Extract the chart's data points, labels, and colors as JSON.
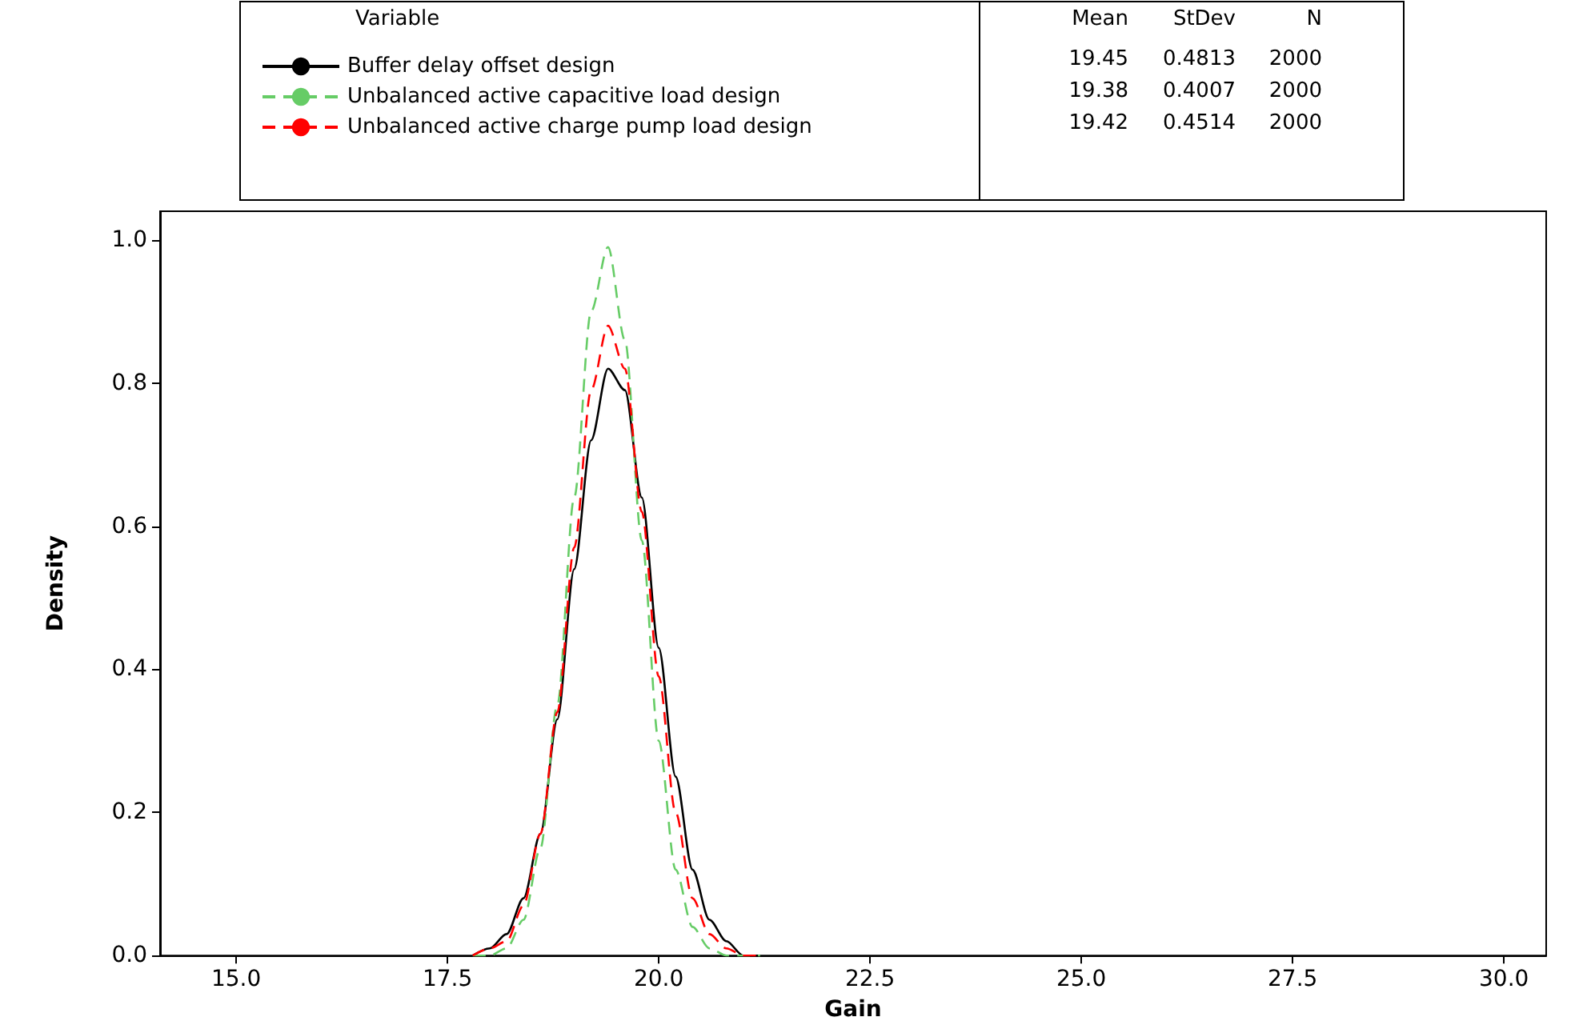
{
  "chart_data": {
    "type": "line",
    "xlabel": "Gain",
    "ylabel": "Density",
    "legend_title": "Variable",
    "legend": "top",
    "grid": false,
    "marker": "none",
    "annotations": [
      "Mean",
      "StDev",
      "N",
      "19.45",
      "0.4813",
      "2000",
      "19.38",
      "0.4007",
      "2000",
      "19.42",
      "0.4514",
      "2000"
    ],
    "x": [
      17.8,
      18.0,
      18.2,
      18.4,
      18.6,
      18.8,
      19.0,
      19.2,
      19.4,
      19.6,
      19.8,
      20.0,
      20.2,
      20.4,
      20.6,
      20.8,
      21.0,
      21.2
    ],
    "xlim": [
      14.1,
      30.5
    ],
    "xticks": [
      {
        "value": 15,
        "label": "15.0"
      },
      {
        "value": 17.5,
        "label": "17.5"
      },
      {
        "value": 20,
        "label": "20.0"
      },
      {
        "value": 22.5,
        "label": "22.5"
      },
      {
        "value": 25,
        "label": "25.0"
      },
      {
        "value": 27.5,
        "label": "27.5"
      },
      {
        "value": 30,
        "label": "30.0"
      }
    ],
    "ylim": [
      0,
      1.04
    ],
    "yticks": [
      {
        "value": 0,
        "label": "0.0"
      },
      {
        "value": 0.2,
        "label": "0.2"
      },
      {
        "value": 0.4,
        "label": "0.4"
      },
      {
        "value": 0.6,
        "label": "0.6"
      },
      {
        "value": 0.8,
        "label": "0.8"
      },
      {
        "value": 1,
        "label": "1.0"
      }
    ],
    "series": [
      {
        "name": "Buffer delay offset design",
        "color": "#000000",
        "line_style": "solid",
        "values": [
          0,
          0.01,
          0.03,
          0.08,
          0.17,
          0.33,
          0.54,
          0.72,
          0.82,
          0.79,
          0.64,
          0.43,
          0.25,
          0.12,
          0.05,
          0.02,
          0,
          0
        ]
      },
      {
        "name": "Unbalanced active capacitive load design",
        "color": "#66cc66",
        "line_style": "dashed",
        "values": [
          0,
          0,
          0.01,
          0.05,
          0.15,
          0.35,
          0.64,
          0.9,
          0.99,
          0.86,
          0.58,
          0.3,
          0.12,
          0.04,
          0.01,
          0,
          0,
          0
        ]
      },
      {
        "name": "Unbalanced active charge pump load design",
        "color": "#ff0000",
        "line_style": "dashed",
        "values": [
          0,
          0.01,
          0.02,
          0.07,
          0.17,
          0.34,
          0.57,
          0.79,
          0.88,
          0.82,
          0.62,
          0.39,
          0.2,
          0.08,
          0.03,
          0.01,
          0,
          0
        ]
      }
    ]
  }
}
